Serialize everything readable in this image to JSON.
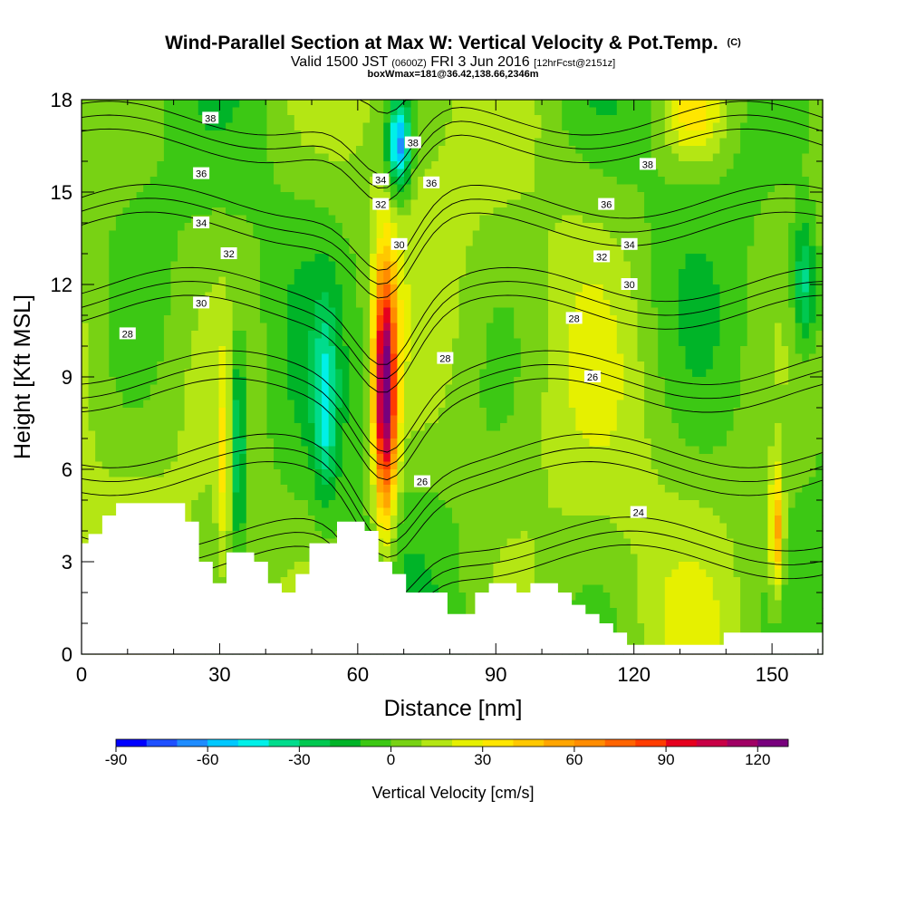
{
  "header": {
    "title": "Wind-Parallel Section at Max W: Vertical Velocity & Pot.Temp.",
    "title_suffix": "(C)",
    "subtitle_a": "Valid 1500 JST",
    "subtitle_b": "(0600Z)",
    "subtitle_c": "FRI 3 Jun 2016",
    "subtitle_d": "[12hrFcst@2151z]",
    "subtitle2": "boxWmax=181@36.42,138.66,2346m"
  },
  "chart_data": {
    "type": "heatmap",
    "xlabel": "Distance [nm]",
    "ylabel": "Height [Kft MSL]",
    "xlim": [
      0,
      161
    ],
    "ylim": [
      0,
      18
    ],
    "xticks": [
      0,
      30,
      60,
      90,
      120,
      150
    ],
    "yticks": [
      0,
      3,
      6,
      9,
      12,
      15,
      18
    ],
    "colorbar": {
      "title": "Vertical Velocity [cm/s]",
      "range": [
        -90,
        130
      ],
      "ticks": [
        -90,
        -60,
        -30,
        0,
        30,
        60,
        90,
        120
      ],
      "step": 10,
      "colors": [
        "#0000ff",
        "#1e50ff",
        "#1e8cff",
        "#00c8ff",
        "#00f0e8",
        "#00dc8c",
        "#00c850",
        "#00b428",
        "#3cc814",
        "#78d214",
        "#b4e614",
        "#e6f000",
        "#ffe600",
        "#ffc800",
        "#ffa500",
        "#ff8c00",
        "#ff6400",
        "#ff3c00",
        "#e6001e",
        "#c80046",
        "#a00064",
        "#78007d"
      ]
    },
    "velocity_features": [
      {
        "x": 66,
        "y": 8.5,
        "w": 2.5,
        "h": 4.0,
        "value": 125
      },
      {
        "x": 34,
        "y": 7.0,
        "w": 1.8,
        "h": 3.2,
        "value": -40
      },
      {
        "x": 53,
        "y": 8.0,
        "w": 2.5,
        "h": 3.0,
        "value": -35
      },
      {
        "x": 69,
        "y": 16.5,
        "w": 2.5,
        "h": 1.5,
        "value": -70
      },
      {
        "x": 31,
        "y": 6.0,
        "w": 1.5,
        "h": 3.5,
        "value": 25
      },
      {
        "x": 133,
        "y": 17.5,
        "w": 6.0,
        "h": 1.5,
        "value": 30
      },
      {
        "x": 151,
        "y": 4.0,
        "w": 1.5,
        "h": 2.0,
        "value": 55
      },
      {
        "x": 157,
        "y": 12.0,
        "w": 2.5,
        "h": 2.0,
        "value": -40
      }
    ],
    "terrain": {
      "x": [
        0,
        3,
        6,
        9,
        12,
        15,
        18,
        21,
        24,
        27,
        30,
        33,
        36,
        39,
        42,
        45,
        48,
        51,
        54,
        57,
        60,
        63,
        66,
        69,
        72,
        75,
        78,
        81,
        84,
        87,
        90,
        93,
        96,
        99,
        102,
        105,
        108,
        111,
        114,
        117,
        120,
        123,
        126,
        129,
        132,
        135,
        138,
        141,
        144,
        147,
        150,
        153,
        156,
        159,
        161
      ],
      "height": [
        3.6,
        3.9,
        4.5,
        4.9,
        4.9,
        4.9,
        4.9,
        4.9,
        4.3,
        3.0,
        2.3,
        3.3,
        3.3,
        3.0,
        2.3,
        2.0,
        2.6,
        3.6,
        3.6,
        4.3,
        4.3,
        4.0,
        3.0,
        2.6,
        2.0,
        2.0,
        2.0,
        1.3,
        1.3,
        2.0,
        2.3,
        2.3,
        2.0,
        2.3,
        2.3,
        2.0,
        1.6,
        1.3,
        1.0,
        0.7,
        0.3,
        0.3,
        0.3,
        0.3,
        0.3,
        0.3,
        0.3,
        0.7,
        0.7,
        0.7,
        0.7,
        0.7,
        0.7,
        0.7,
        0.7
      ]
    },
    "theta_contours": {
      "levels": [
        24,
        26,
        28,
        30,
        32,
        34,
        36,
        38
      ],
      "labels": [
        {
          "text": "38",
          "x": 28,
          "y": 17.4
        },
        {
          "text": "36",
          "x": 26,
          "y": 15.6
        },
        {
          "text": "34",
          "x": 26,
          "y": 14.0
        },
        {
          "text": "32",
          "x": 32,
          "y": 13.0
        },
        {
          "text": "30",
          "x": 26,
          "y": 11.4
        },
        {
          "text": "28",
          "x": 10,
          "y": 10.4
        },
        {
          "text": "34",
          "x": 65,
          "y": 15.4
        },
        {
          "text": "32",
          "x": 65,
          "y": 14.6
        },
        {
          "text": "30",
          "x": 69,
          "y": 13.3
        },
        {
          "text": "38",
          "x": 72,
          "y": 16.6
        },
        {
          "text": "36",
          "x": 76,
          "y": 15.3
        },
        {
          "text": "28",
          "x": 79,
          "y": 9.6
        },
        {
          "text": "26",
          "x": 74,
          "y": 5.6
        },
        {
          "text": "38",
          "x": 123,
          "y": 15.9
        },
        {
          "text": "36",
          "x": 114,
          "y": 14.6
        },
        {
          "text": "34",
          "x": 119,
          "y": 13.3
        },
        {
          "text": "32",
          "x": 113,
          "y": 12.9
        },
        {
          "text": "30",
          "x": 119,
          "y": 12.0
        },
        {
          "text": "28",
          "x": 107,
          "y": 10.9
        },
        {
          "text": "26",
          "x": 111,
          "y": 9.0
        },
        {
          "text": "24",
          "x": 121,
          "y": 4.6
        }
      ]
    }
  }
}
